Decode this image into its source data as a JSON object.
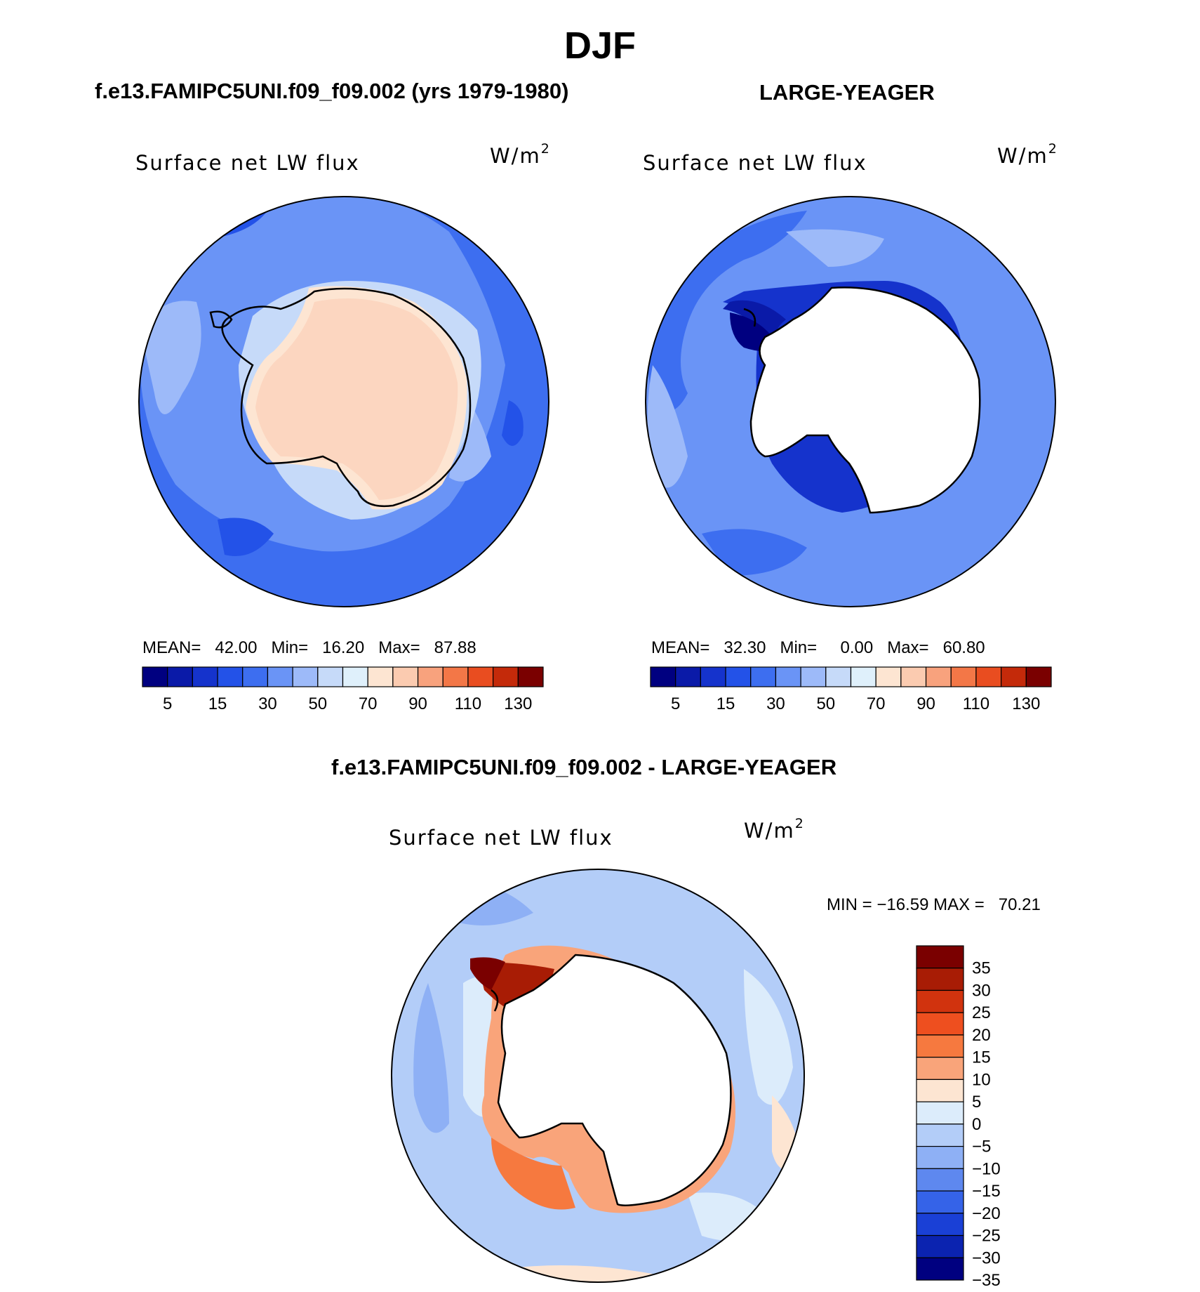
{
  "figure": {
    "title": "DJF",
    "panel_top_left_title": "f.e13.FAMIPC5UNI.f09_f09.002 (yrs 1979-1980)",
    "panel_top_right_title": "LARGE-YEAGER",
    "panel_bottom_title": "f.e13.FAMIPC5UNI.f09_f09.002 - LARGE-YEAGER"
  },
  "chart_data": [
    {
      "type": "heatmap",
      "projection": "south-polar-stereographic",
      "title": "f.e13.FAMIPC5UNI.f09_f09.002 (yrs 1979-1980)",
      "variable": "Surface net LW flux",
      "units": "W/m²",
      "stats": {
        "mean_label": "MEAN=",
        "mean": "42.00",
        "min_label": "Min=",
        "min": "16.20",
        "max_label": "Max=",
        "max": "87.88"
      },
      "colorbar_levels": [
        5,
        10,
        15,
        20,
        30,
        40,
        50,
        60,
        70,
        80,
        90,
        100,
        110,
        120,
        130
      ],
      "colorbar_tick_labels": [
        "5",
        "15",
        "30",
        "50",
        "70",
        "90",
        "110",
        "130"
      ],
      "colors": [
        "#000080",
        "#0a1aa8",
        "#1533cc",
        "#2352e8",
        "#3d6ef0",
        "#6a94f6",
        "#9dbaf9",
        "#c6daf9",
        "#dff0fb",
        "#fde5d2",
        "#fbcbb0",
        "#f8a27d",
        "#f37747",
        "#e94d20",
        "#c42a0a",
        "#7a0000"
      ]
    },
    {
      "type": "heatmap",
      "projection": "south-polar-stereographic",
      "title": "LARGE-YEAGER",
      "variable": "Surface net LW flux",
      "units": "W/m²",
      "stats": {
        "mean_label": "MEAN=",
        "mean": "32.30",
        "min_label": "Min=",
        "min": "0.00",
        "max_label": "Max=",
        "max": "60.80"
      },
      "colorbar_levels": [
        5,
        10,
        15,
        20,
        30,
        40,
        50,
        60,
        70,
        80,
        90,
        100,
        110,
        120,
        130
      ],
      "colorbar_tick_labels": [
        "5",
        "15",
        "30",
        "50",
        "70",
        "90",
        "110",
        "130"
      ]
    },
    {
      "type": "heatmap",
      "projection": "south-polar-stereographic",
      "title": "f.e13.FAMIPC5UNI.f09_f09.002 - LARGE-YEAGER",
      "variable": "Surface net LW flux",
      "units": "W/m²",
      "stats_text": "MIN = −16.59 MAX =   70.21",
      "colorbar_levels": [
        -35,
        -30,
        -25,
        -20,
        -15,
        -10,
        -5,
        0,
        5,
        10,
        15,
        20,
        25,
        30,
        35
      ],
      "colorbar_tick_labels": [
        "35",
        "30",
        "25",
        "20",
        "15",
        "10",
        "5",
        "0",
        "−5",
        "−10",
        "−15",
        "−20",
        "−25",
        "−30",
        "−35"
      ],
      "colors_top_to_bottom": [
        "#7a0000",
        "#a81c05",
        "#d1330e",
        "#ee4f1f",
        "#f6793f",
        "#f9a47a",
        "#fde5d2",
        "#dcecfb",
        "#b3cdf8",
        "#8eb0f5",
        "#5e88ef",
        "#3563e8",
        "#1a40d6",
        "#0b23b0",
        "#000080"
      ]
    }
  ]
}
